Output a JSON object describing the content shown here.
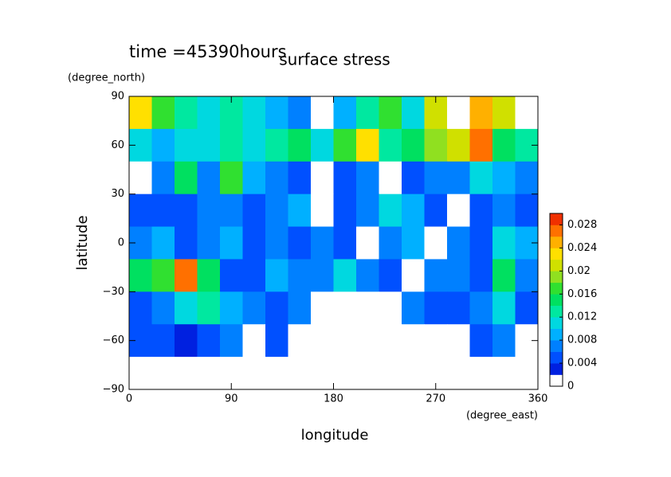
{
  "chart_data": {
    "type": "contour",
    "time_label": "time =45390hours",
    "title": "surface stress",
    "xlabel": "longitude",
    "xunit": "(degree_east)",
    "ylabel": "latitude",
    "yunit": "(degree_north)",
    "xlim": [
      0,
      360
    ],
    "xticks": [
      0,
      90,
      180,
      270,
      360
    ],
    "ylim": [
      -90,
      90
    ],
    "yticks": [
      {
        "value": -90,
        "label": "−90"
      },
      {
        "value": -60,
        "label": "−60"
      },
      {
        "value": -30,
        "label": "−30"
      },
      0,
      30,
      60,
      90
    ],
    "x": [
      10,
      30,
      50,
      70,
      90,
      110,
      130,
      150,
      170,
      190,
      210,
      230,
      250,
      270,
      290,
      310,
      330,
      350
    ],
    "y": [
      80,
      60,
      40,
      20,
      0,
      -20,
      -40,
      -60,
      -80
    ],
    "z": [
      [
        0.022,
        0.016,
        0.012,
        0.01,
        0.012,
        0.01,
        0.008,
        0.006,
        0.001,
        0.008,
        0.012,
        0.016,
        0.01,
        0.02,
        0.001,
        0.024,
        0.02,
        0.001
      ],
      [
        0.01,
        0.008,
        0.01,
        0.01,
        0.012,
        0.01,
        0.012,
        0.014,
        0.01,
        0.016,
        0.022,
        0.012,
        0.014,
        0.018,
        0.02,
        0.026,
        0.014,
        0.012
      ],
      [
        0.001,
        0.006,
        0.014,
        0.006,
        0.016,
        0.008,
        0.006,
        0.004,
        0.001,
        0.004,
        0.006,
        0.001,
        0.004,
        0.006,
        0.006,
        0.01,
        0.008,
        0.006
      ],
      [
        0.004,
        0.004,
        0.004,
        0.006,
        0.006,
        0.004,
        0.006,
        0.008,
        0.001,
        0.004,
        0.006,
        0.01,
        0.008,
        0.004,
        0.001,
        0.004,
        0.006,
        0.004
      ],
      [
        0.006,
        0.008,
        0.004,
        0.006,
        0.008,
        0.004,
        0.006,
        0.004,
        0.006,
        0.004,
        0.001,
        0.006,
        0.008,
        0.001,
        0.006,
        0.004,
        0.01,
        0.008
      ],
      [
        0.014,
        0.016,
        0.026,
        0.014,
        0.004,
        0.004,
        0.008,
        0.006,
        0.006,
        0.01,
        0.006,
        0.004,
        0.001,
        0.006,
        0.006,
        0.004,
        0.014,
        0.006
      ],
      [
        0.004,
        0.006,
        0.01,
        0.012,
        0.008,
        0.006,
        0.004,
        0.006,
        0.001,
        0.001,
        0.001,
        0.001,
        0.006,
        0.004,
        0.004,
        0.006,
        0.01,
        0.004
      ],
      [
        0.004,
        0.004,
        0.002,
        0.004,
        0.006,
        0.001,
        0.004,
        0.001,
        0.001,
        0.001,
        0.001,
        0.001,
        0.001,
        0.001,
        0.001,
        0.004,
        0.006,
        0.001
      ],
      [
        0,
        0,
        0,
        0,
        0,
        0,
        0,
        0,
        0,
        0,
        0,
        0,
        0,
        0,
        0,
        0,
        0,
        0
      ]
    ],
    "levels": [
      0,
      0.002,
      0.004,
      0.006,
      0.008,
      0.01,
      0.012,
      0.014,
      0.016,
      0.018,
      0.02,
      0.022,
      0.024,
      0.026,
      0.028,
      0.03
    ],
    "colors": [
      "#ffffff",
      "#0020e0",
      "#0050ff",
      "#0080ff",
      "#00b0ff",
      "#00d8e0",
      "#00e8a0",
      "#00e060",
      "#30e030",
      "#90e020",
      "#d0e000",
      "#ffe000",
      "#ffb000",
      "#ff7000",
      "#f03000"
    ],
    "cticks": [
      0,
      0.004,
      0.008,
      0.012,
      0.016,
      0.02,
      0.024,
      0.028
    ]
  }
}
